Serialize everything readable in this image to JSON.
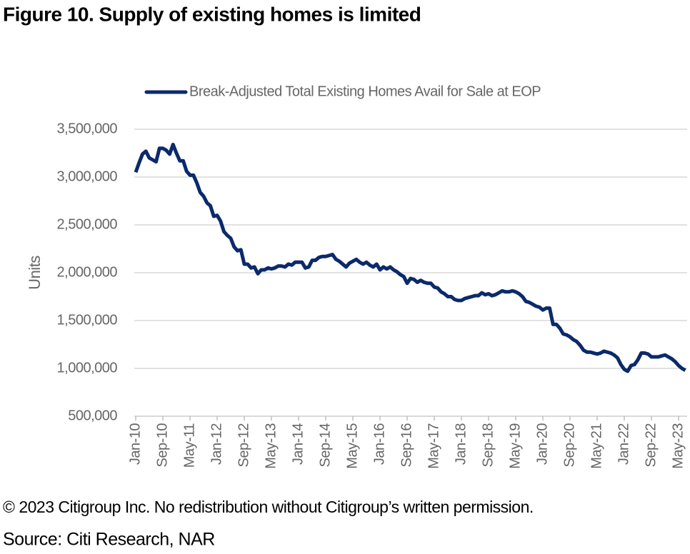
{
  "chart_data": {
    "type": "line",
    "title": "Figure 10. Supply of existing homes is limited",
    "ylabel": "Units",
    "footnote": "© 2023 Citigroup Inc. No redistribution without Citigroup’s written permission.",
    "source": "Source: Citi Research, NAR",
    "legend": "top",
    "grid": true,
    "ylim": [
      500000,
      3500000
    ],
    "yticks": [
      {
        "value": 500000,
        "label": "500,000"
      },
      {
        "value": 1000000,
        "label": "1,000,000"
      },
      {
        "value": 1500000,
        "label": "1,500,000"
      },
      {
        "value": 2000000,
        "label": "2,000,000"
      },
      {
        "value": 2500000,
        "label": "2,500,000"
      },
      {
        "value": 3000000,
        "label": "3,000,000"
      },
      {
        "value": 3500000,
        "label": "3,500,000"
      }
    ],
    "categories": [
      "Jan-10",
      null,
      null,
      null,
      null,
      null,
      null,
      null,
      "Sep-10",
      null,
      null,
      null,
      null,
      null,
      null,
      null,
      "May-11",
      null,
      null,
      null,
      null,
      null,
      null,
      null,
      "Jan-12",
      null,
      null,
      null,
      null,
      null,
      null,
      null,
      "Sep-12",
      null,
      null,
      null,
      null,
      null,
      null,
      null,
      "May-13",
      null,
      null,
      null,
      null,
      null,
      null,
      null,
      "Jan-14",
      null,
      null,
      null,
      null,
      null,
      null,
      null,
      "Sep-14",
      null,
      null,
      null,
      null,
      null,
      null,
      null,
      "May-15",
      null,
      null,
      null,
      null,
      null,
      null,
      null,
      "Jan-16",
      null,
      null,
      null,
      null,
      null,
      null,
      null,
      "Sep-16",
      null,
      null,
      null,
      null,
      null,
      null,
      null,
      "May-17",
      null,
      null,
      null,
      null,
      null,
      null,
      null,
      "Jan-18",
      null,
      null,
      null,
      null,
      null,
      null,
      null,
      "Sep-18",
      null,
      null,
      null,
      null,
      null,
      null,
      null,
      "May-19",
      null,
      null,
      null,
      null,
      null,
      null,
      null,
      "Jan-20",
      null,
      null,
      null,
      null,
      null,
      null,
      null,
      "Sep-20",
      null,
      null,
      null,
      null,
      null,
      null,
      null,
      "May-21",
      null,
      null,
      null,
      null,
      null,
      null,
      null,
      "Jan-22",
      null,
      null,
      null,
      null,
      null,
      null,
      null,
      "Sep-22",
      null,
      null,
      null,
      null,
      null,
      null,
      null,
      "May-23",
      null,
      null
    ],
    "series": [
      {
        "name": "Break-Adjusted Total Existing Homes Avail for Sale at EOP",
        "color": "#0b2a6b",
        "values": [
          3050000,
          3150000,
          3240000,
          3270000,
          3200000,
          3180000,
          3160000,
          3300000,
          3300000,
          3280000,
          3240000,
          3340000,
          3250000,
          3170000,
          3170000,
          3060000,
          3020000,
          3020000,
          2940000,
          2840000,
          2800000,
          2730000,
          2700000,
          2590000,
          2600000,
          2540000,
          2430000,
          2390000,
          2360000,
          2270000,
          2230000,
          2240000,
          2090000,
          2090000,
          2050000,
          2060000,
          1990000,
          2030000,
          2030000,
          2050000,
          2040000,
          2050000,
          2070000,
          2070000,
          2060000,
          2090000,
          2080000,
          2110000,
          2110000,
          2110000,
          2050000,
          2060000,
          2130000,
          2130000,
          2160000,
          2170000,
          2170000,
          2180000,
          2190000,
          2140000,
          2120000,
          2090000,
          2060000,
          2100000,
          2120000,
          2140000,
          2110000,
          2090000,
          2110000,
          2080000,
          2060000,
          2090000,
          2030000,
          2060000,
          2040000,
          2060000,
          2030000,
          2010000,
          1980000,
          1960000,
          1890000,
          1940000,
          1930000,
          1900000,
          1920000,
          1900000,
          1890000,
          1890000,
          1850000,
          1840000,
          1800000,
          1780000,
          1750000,
          1750000,
          1720000,
          1710000,
          1710000,
          1730000,
          1740000,
          1750000,
          1760000,
          1760000,
          1790000,
          1770000,
          1780000,
          1760000,
          1770000,
          1790000,
          1810000,
          1800000,
          1800000,
          1810000,
          1800000,
          1780000,
          1750000,
          1700000,
          1690000,
          1670000,
          1650000,
          1640000,
          1610000,
          1630000,
          1630000,
          1460000,
          1460000,
          1420000,
          1360000,
          1350000,
          1330000,
          1300000,
          1280000,
          1240000,
          1190000,
          1170000,
          1170000,
          1160000,
          1150000,
          1160000,
          1180000,
          1170000,
          1160000,
          1140000,
          1110000,
          1040000,
          990000,
          970000,
          1030000,
          1040000,
          1090000,
          1160000,
          1160000,
          1150000,
          1120000,
          1120000,
          1120000,
          1130000,
          1140000,
          1120000,
          1100000,
          1070000,
          1030000,
          1000000,
          980000
        ]
      }
    ]
  }
}
